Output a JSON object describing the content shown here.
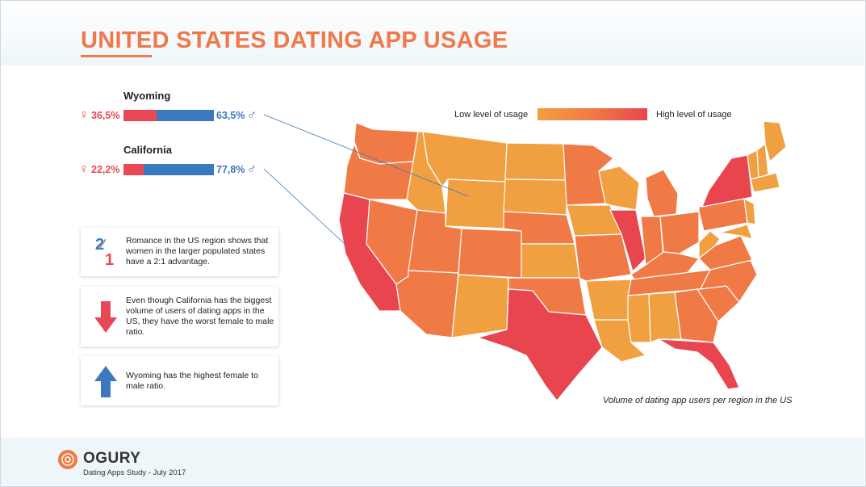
{
  "title": "UNITED STATES DATING APP USAGE",
  "comparisons": [
    {
      "state": "Wyoming",
      "female_pct": "36,5%",
      "male_pct": "63,5%",
      "female_value": 36.5,
      "male_value": 63.5
    },
    {
      "state": "California",
      "female_pct": "22,2%",
      "male_pct": "77,8%",
      "female_value": 22.2,
      "male_value": 77.8
    }
  ],
  "cards": [
    {
      "icon": "ratio-2-1-icon",
      "ratio_top": "2",
      "ratio_bottom": "1",
      "text": "Romance in the US region shows that women in the larger populated states have a 2:1 advantage."
    },
    {
      "icon": "arrow-down-icon",
      "text": "Even though California has the biggest volume of users of dating apps in the US, they have the worst female to male ratio."
    },
    {
      "icon": "arrow-up-icon",
      "text": "Wyoming has the highest female to male ratio."
    }
  ],
  "legend": {
    "low": "Low level of usage",
    "high": "High level of usage",
    "low_color": "#f0a040",
    "mid_color": "#f07a45",
    "high_color": "#e8454f"
  },
  "caption": "Volume of dating app users per region in the US",
  "footer": {
    "brand": "OGURY",
    "subtitle": "Dating Apps Study - July 2017"
  },
  "chart_data": {
    "type": "heatmap",
    "title": "UNITED STATES DATING APP USAGE",
    "note": "",
    "levels": [
      "low",
      "mid",
      "high"
    ],
    "regions": [
      {
        "name": "California",
        "level": "high"
      },
      {
        "name": "Texas",
        "level": "high"
      },
      {
        "name": "New York",
        "level": "high"
      },
      {
        "name": "Florida",
        "level": "high"
      },
      {
        "name": "Illinois",
        "level": "high"
      },
      {
        "name": "Washington",
        "level": "mid"
      },
      {
        "name": "Oregon",
        "level": "mid"
      },
      {
        "name": "Nevada",
        "level": "mid"
      },
      {
        "name": "Arizona",
        "level": "mid"
      },
      {
        "name": "Colorado",
        "level": "mid"
      },
      {
        "name": "Utah",
        "level": "mid"
      },
      {
        "name": "Nebraska",
        "level": "mid"
      },
      {
        "name": "Minnesota",
        "level": "mid"
      },
      {
        "name": "Missouri",
        "level": "mid"
      },
      {
        "name": "Oklahoma",
        "level": "mid"
      },
      {
        "name": "Michigan",
        "level": "mid"
      },
      {
        "name": "Ohio",
        "level": "mid"
      },
      {
        "name": "Pennsylvania",
        "level": "mid"
      },
      {
        "name": "North Carolina",
        "level": "mid"
      },
      {
        "name": "Georgia",
        "level": "mid"
      },
      {
        "name": "Idaho",
        "level": "low"
      },
      {
        "name": "Montana",
        "level": "low"
      },
      {
        "name": "Wyoming",
        "level": "low"
      },
      {
        "name": "North Dakota",
        "level": "low"
      },
      {
        "name": "South Dakota",
        "level": "low"
      },
      {
        "name": "Kansas",
        "level": "low"
      },
      {
        "name": "New Mexico",
        "level": "low"
      },
      {
        "name": "Iowa",
        "level": "low"
      },
      {
        "name": "Wisconsin",
        "level": "low"
      },
      {
        "name": "Arkansas",
        "level": "low"
      },
      {
        "name": "Louisiana",
        "level": "low"
      },
      {
        "name": "Mississippi",
        "level": "low"
      },
      {
        "name": "Alabama",
        "level": "low"
      },
      {
        "name": "Tennessee",
        "level": "mid"
      },
      {
        "name": "Kentucky",
        "level": "mid"
      },
      {
        "name": "Indiana",
        "level": "mid"
      },
      {
        "name": "West Virginia",
        "level": "low"
      },
      {
        "name": "Virginia",
        "level": "mid"
      },
      {
        "name": "South Carolina",
        "level": "mid"
      },
      {
        "name": "Maine",
        "level": "low"
      },
      {
        "name": "Vermont",
        "level": "low"
      },
      {
        "name": "New Hampshire",
        "level": "low"
      },
      {
        "name": "Massachusetts",
        "level": "low"
      },
      {
        "name": "New Jersey",
        "level": "low"
      },
      {
        "name": "Maryland",
        "level": "low"
      }
    ]
  }
}
